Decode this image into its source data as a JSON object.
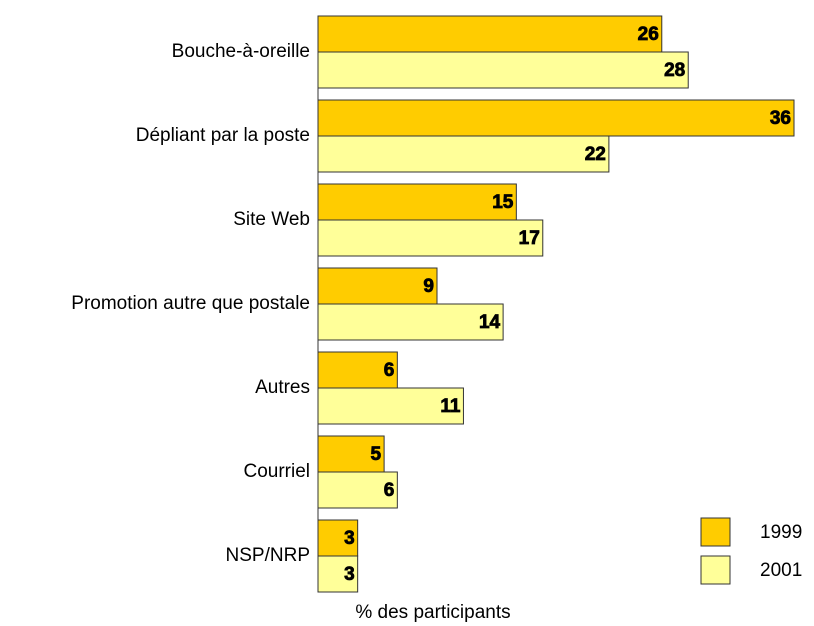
{
  "chart_data": {
    "type": "bar",
    "orientation": "horizontal",
    "categories": [
      "Bouche-à-oreille",
      "Dépliant par la poste",
      "Site Web",
      "Promotion autre que postale",
      "Autres",
      "Courriel",
      "NSP/NRP"
    ],
    "series": [
      {
        "name": "1999",
        "color": "#ffcc00",
        "values": [
          26,
          36,
          15,
          9,
          6,
          5,
          3
        ]
      },
      {
        "name": "2001",
        "color": "#ffff99",
        "values": [
          28,
          22,
          17,
          14,
          11,
          6,
          3
        ]
      }
    ],
    "xlim": [
      0,
      36
    ],
    "xlabel": "% des participants",
    "legend": "lower right"
  }
}
